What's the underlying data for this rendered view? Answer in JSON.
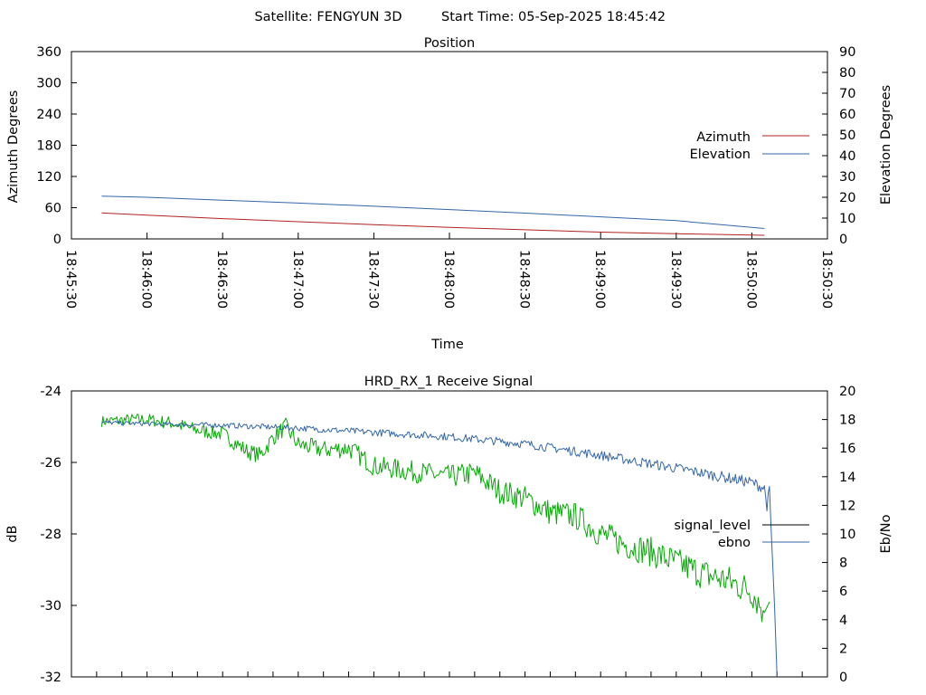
{
  "header": {
    "satellite": "Satellite: FENGYUN 3D",
    "start_time": "Start Time: 05-Sep-2025 18:45:42"
  },
  "chart_data": [
    {
      "type": "line",
      "title": "Position",
      "xlabel": "Time",
      "ylabel": "Azimuth Degrees",
      "y2label": "Elevation Degrees",
      "xlim": [
        "18:45:30",
        "18:50:30"
      ],
      "ylim": [
        0,
        360
      ],
      "y2lim": [
        0,
        90
      ],
      "x_tick_labels": [
        "18:45:30",
        "18:46:00",
        "18:46:30",
        "18:47:00",
        "18:47:30",
        "18:48:00",
        "18:48:30",
        "18:49:00",
        "18:49:30",
        "18:50:00",
        "18:50:30"
      ],
      "y_tick_labels": [
        "0",
        "60",
        "120",
        "180",
        "240",
        "300",
        "360"
      ],
      "y2_tick_labels": [
        "0",
        "10",
        "20",
        "30",
        "40",
        "50",
        "60",
        "70",
        "80",
        "90"
      ],
      "legend_position": "right",
      "grid": false,
      "series": [
        {
          "name": "Azimuth",
          "axis": "left",
          "color": "#b22222",
          "x": [
            "18:45:42",
            "18:46:00",
            "18:46:30",
            "18:47:00",
            "18:47:30",
            "18:48:00",
            "18:48:30",
            "18:49:00",
            "18:49:30",
            "18:50:05"
          ],
          "y": [
            50,
            45.5,
            39,
            33,
            27.5,
            22,
            17.5,
            13,
            10,
            7
          ]
        },
        {
          "name": "Elevation",
          "axis": "right",
          "color": "#3366aa",
          "x": [
            "18:45:42",
            "18:46:00",
            "18:46:30",
            "18:47:00",
            "18:47:30",
            "18:48:00",
            "18:48:30",
            "18:49:00",
            "18:49:30",
            "18:50:05"
          ],
          "y": [
            20.5,
            20,
            18.6,
            17.2,
            15.7,
            14.1,
            12.4,
            10.6,
            8.8,
            5
          ]
        }
      ]
    },
    {
      "type": "line",
      "title": "HRD_RX_1 Receive Signal",
      "ylabel": "dB",
      "y2label": "Eb/No",
      "xlim": [
        "18:45:30",
        "18:50:30"
      ],
      "ylim": [
        -32,
        -24
      ],
      "y2lim": [
        0,
        20
      ],
      "y_tick_labels": [
        "-32",
        "-30",
        "-28",
        "-26",
        "-24"
      ],
      "y2_tick_labels": [
        "0",
        "2",
        "4",
        "6",
        "8",
        "10",
        "12",
        "14",
        "16",
        "18",
        "20"
      ],
      "legend_position": "right",
      "grid": false,
      "series": [
        {
          "name": "signal_level",
          "axis": "left",
          "color": "#00aa00",
          "x": [
            "18:45:42",
            "18:45:55",
            "18:46:00",
            "18:46:10",
            "18:46:20",
            "18:46:30",
            "18:46:40",
            "18:46:45",
            "18:46:50",
            "18:46:55",
            "18:47:00",
            "18:47:10",
            "18:47:20",
            "18:47:30",
            "18:47:40",
            "18:47:50",
            "18:48:00",
            "18:48:10",
            "18:48:20",
            "18:48:30",
            "18:48:40",
            "18:48:50",
            "18:49:00",
            "18:49:10",
            "18:49:20",
            "18:49:30",
            "18:49:40",
            "18:49:50",
            "18:50:00",
            "18:50:05",
            "18:50:07"
          ],
          "y": [
            -24.85,
            -24.8,
            -24.8,
            -24.9,
            -25.1,
            -25.2,
            -25.7,
            -25.8,
            -25.3,
            -25.0,
            -25.5,
            -25.65,
            -25.6,
            -26.1,
            -26.2,
            -26.3,
            -26.4,
            -26.3,
            -26.8,
            -27.0,
            -27.4,
            -27.5,
            -28.0,
            -28.3,
            -28.5,
            -28.8,
            -29.1,
            -29.3,
            -29.6,
            -30.2,
            -29.9
          ],
          "noise_amplitude": 0.35
        },
        {
          "name": "ebno",
          "axis": "right",
          "color": "#3366aa",
          "x": [
            "18:45:42",
            "18:46:00",
            "18:46:30",
            "18:47:00",
            "18:47:30",
            "18:48:00",
            "18:48:30",
            "18:49:00",
            "18:49:30",
            "18:50:00",
            "18:50:05",
            "18:50:06",
            "18:50:07",
            "18:50:09",
            "18:50:10"
          ],
          "y": [
            17.8,
            17.7,
            17.6,
            17.4,
            17.1,
            16.8,
            16.3,
            15.5,
            14.6,
            13.6,
            13.2,
            12.0,
            13.0,
            5.0,
            0
          ],
          "noise_amplitude": 0.3
        }
      ]
    }
  ]
}
